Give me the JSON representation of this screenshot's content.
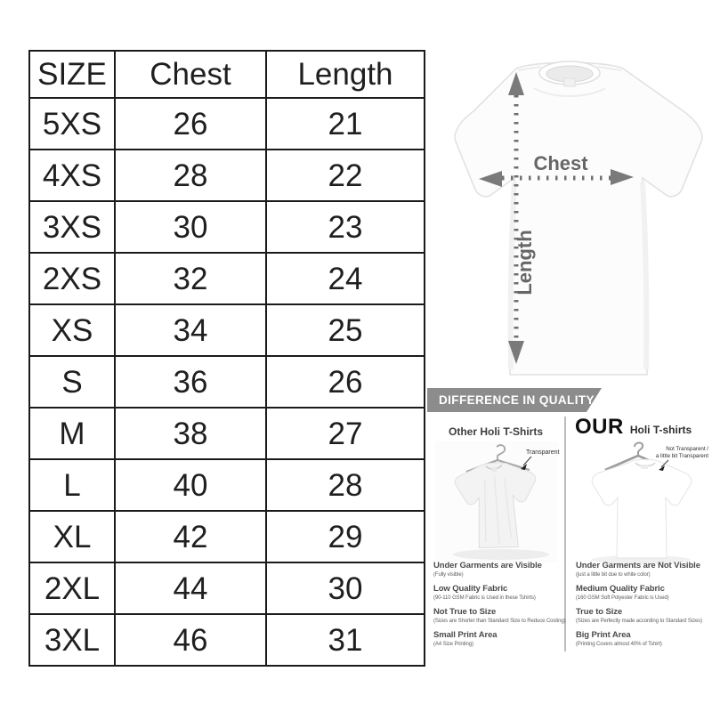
{
  "size_chart": {
    "headers": [
      "SIZE",
      "Chest",
      "Length"
    ],
    "rows": [
      [
        "5XS",
        "26",
        "21"
      ],
      [
        "4XS",
        "28",
        "22"
      ],
      [
        "3XS",
        "30",
        "23"
      ],
      [
        "2XS",
        "32",
        "24"
      ],
      [
        "XS",
        "34",
        "25"
      ],
      [
        "S",
        "36",
        "26"
      ],
      [
        "M",
        "38",
        "27"
      ],
      [
        "L",
        "40",
        "28"
      ],
      [
        "XL",
        "42",
        "29"
      ],
      [
        "2XL",
        "44",
        "30"
      ],
      [
        "3XL",
        "46",
        "31"
      ]
    ]
  },
  "measurement_diagram": {
    "chest_label": "Chest",
    "length_label": "Length"
  },
  "quality_section": {
    "banner_title": "DIFFERENCE IN QUALITY",
    "other_column": {
      "title": "Other Holi T-Shirts",
      "annotation": "Transparent",
      "features": [
        {
          "title": "Under Garments are Visible",
          "detail": "(Fully visible)"
        },
        {
          "title": "Low Quality Fabric",
          "detail": "(90-110 GSM Fabric is Used in these Tshirts)"
        },
        {
          "title": "Not True to Size",
          "detail": "(Sizes are Shorter than Standard Size to Reduce Costing)"
        },
        {
          "title": "Small Print Area",
          "detail": "(A4 Size Printing)"
        }
      ]
    },
    "our_column": {
      "title_emphasis": "OUR",
      "title": "Holi T-shirts",
      "annotation_line1": "Not Transparent /",
      "annotation_line2": "a little bit Transparent",
      "features": [
        {
          "title": "Under Garments are Not Visible",
          "detail": "(just a little bit due to white color)"
        },
        {
          "title": "Medium Quality Fabric",
          "detail": "(160 GSM Soft Polyester Fabric is Used)"
        },
        {
          "title": "True to Size",
          "detail": "(Sizes are Perfectly made according to Standard Sizes)"
        },
        {
          "title": "Big Print Area",
          "detail": "(Printing Covers almost 40% of Tshirt)"
        }
      ]
    }
  },
  "colors": {
    "banner_background": "#8c8c8c",
    "banner_text": "#ffffff",
    "table_border": "#1b1b1b",
    "measure_annotation_gray": "#6f6f6f"
  }
}
